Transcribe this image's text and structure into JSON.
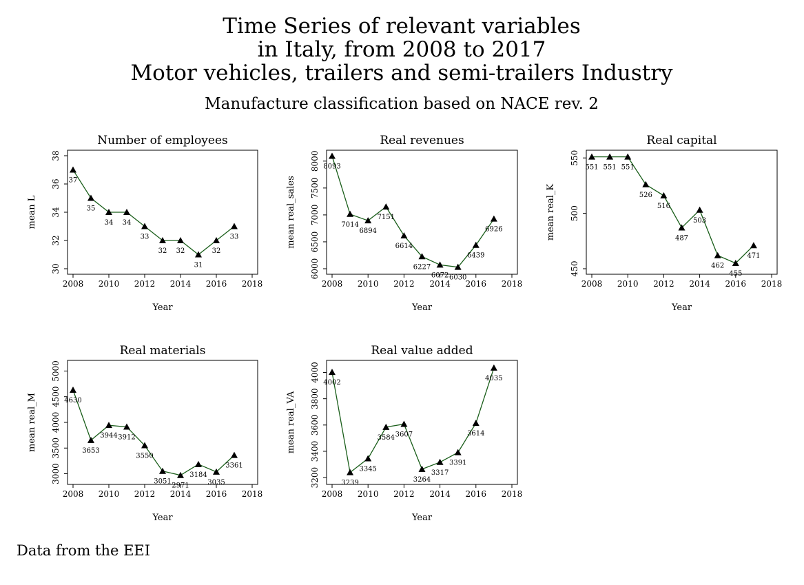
{
  "title_lines": [
    "Time Series of relevant variables",
    "in Italy, from 2008 to 2017",
    "Motor vehicles, trailers and semi-trailers Industry"
  ],
  "subtitle": "Manufacture classification based on NACE rev. 2",
  "note": "Data from the EEI",
  "colors": {
    "line": "#1a5e1a",
    "marker": "#000000",
    "frame": "#000000"
  },
  "chart_data": [
    {
      "type": "line",
      "title": "Number of employees",
      "xlabel": "Year",
      "ylabel": "mean L",
      "x": [
        2008,
        2009,
        2010,
        2011,
        2012,
        2013,
        2014,
        2015,
        2016,
        2017
      ],
      "values": [
        37,
        35,
        34,
        34,
        33,
        32,
        32,
        31,
        32,
        33
      ],
      "value_labels": [
        "37",
        "35",
        "34",
        "34",
        "33",
        "32",
        "32",
        "31",
        "32",
        "33"
      ],
      "xlim": [
        2008,
        2018
      ],
      "ylim": [
        30,
        38
      ],
      "xticks": [
        2008,
        2010,
        2012,
        2014,
        2016,
        2018
      ],
      "yticks": [
        30,
        32,
        34,
        36,
        38
      ],
      "grid": false
    },
    {
      "type": "line",
      "title": "Real revenues",
      "xlabel": "Year",
      "ylabel": "mean real_sales",
      "x": [
        2008,
        2009,
        2010,
        2011,
        2012,
        2013,
        2014,
        2015,
        2016,
        2017
      ],
      "values": [
        8093,
        7014,
        6894,
        7151,
        6614,
        6227,
        6072,
        6030,
        6439,
        6926
      ],
      "value_labels": [
        "8093",
        "7014",
        "6894",
        "7151",
        "6614",
        "6227",
        "6072",
        "6030",
        "6439",
        "6926"
      ],
      "xlim": [
        2008,
        2018
      ],
      "ylim": [
        6000,
        8100
      ],
      "xticks": [
        2008,
        2010,
        2012,
        2014,
        2016,
        2018
      ],
      "yticks": [
        6000,
        6500,
        7000,
        7500,
        8000
      ],
      "grid": false
    },
    {
      "type": "line",
      "title": "Real capital",
      "xlabel": "Year",
      "ylabel": "mean real_K",
      "x": [
        2008,
        2009,
        2010,
        2011,
        2012,
        2013,
        2014,
        2015,
        2016,
        2017
      ],
      "values": [
        551,
        551,
        551,
        526,
        516,
        487,
        503,
        462,
        455,
        471
      ],
      "value_labels": [
        "551",
        "551",
        "551",
        "526",
        "516",
        "487",
        "503",
        "462",
        "455",
        "471"
      ],
      "xlim": [
        2008,
        2018
      ],
      "ylim": [
        450,
        552
      ],
      "xticks": [
        2008,
        2010,
        2012,
        2014,
        2016,
        2018
      ],
      "yticks": [
        450,
        500,
        550
      ],
      "grid": false
    },
    {
      "type": "line",
      "title": "Real materials",
      "xlabel": "Year",
      "ylabel": "mean real_M",
      "x": [
        2008,
        2009,
        2010,
        2011,
        2012,
        2013,
        2014,
        2015,
        2016,
        2017
      ],
      "values": [
        4630,
        3653,
        3944,
        3912,
        3550,
        3051,
        2971,
        3184,
        3035,
        3361
      ],
      "value_labels": [
        "4630",
        "3653",
        "3944",
        "3912",
        "3550",
        "3051",
        "2971",
        "3184",
        "3035",
        "3361"
      ],
      "xlim": [
        2008,
        2018
      ],
      "ylim": [
        2900,
        5100
      ],
      "xticks": [
        2008,
        2010,
        2012,
        2014,
        2016,
        2018
      ],
      "yticks": [
        3000,
        3500,
        4000,
        4500,
        5000
      ],
      "grid": false
    },
    {
      "type": "line",
      "title": "Real value added",
      "xlabel": "Year",
      "ylabel": "mean real_VA",
      "x": [
        2008,
        2009,
        2010,
        2011,
        2012,
        2013,
        2014,
        2015,
        2016,
        2017
      ],
      "values": [
        4002,
        3239,
        3345,
        3584,
        3607,
        3264,
        3317,
        3391,
        3614,
        4035
      ],
      "value_labels": [
        "4002",
        "3239",
        "3345",
        "3584",
        "3607",
        "3264",
        "3317",
        "3391",
        "3614",
        "4035"
      ],
      "xlim": [
        2008,
        2018
      ],
      "ylim": [
        3190,
        4050
      ],
      "xticks": [
        2008,
        2010,
        2012,
        2014,
        2016,
        2018
      ],
      "yticks": [
        3200,
        3400,
        3600,
        3800,
        4000
      ],
      "grid": false
    }
  ]
}
